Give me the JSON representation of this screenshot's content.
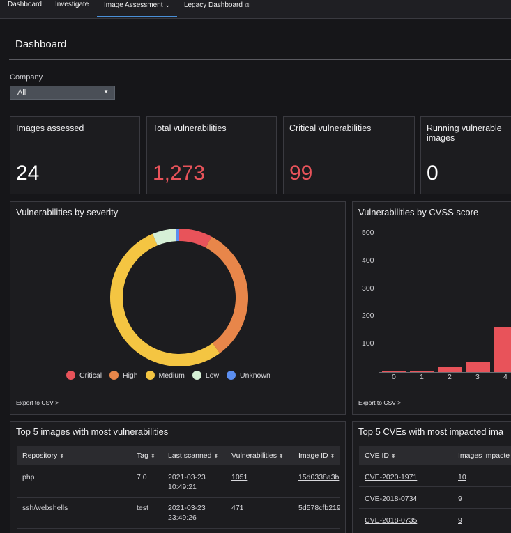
{
  "nav": {
    "tabs": [
      "Dashboard",
      "Investigate",
      "Image Assessment",
      "Legacy Dashboard"
    ],
    "active": "Image Assessment"
  },
  "page": {
    "title": "Dashboard"
  },
  "filter": {
    "label": "Company",
    "selected": "All"
  },
  "stats": [
    {
      "label": "Images assessed",
      "value": "24"
    },
    {
      "label": "Total vulnerabilities",
      "value": "1,273"
    },
    {
      "label": "Critical vulnerabilities",
      "value": "99"
    },
    {
      "label": "Running vulnerable images",
      "value": "0"
    }
  ],
  "severity_panel": {
    "title": "Vulnerabilities by severity",
    "export": "Export to CSV >",
    "legend": [
      "Critical",
      "High",
      "Medium",
      "Low",
      "Unknown"
    ]
  },
  "cvss_panel": {
    "title": "Vulnerabilities by CVSS score",
    "export": "Export to CSV >"
  },
  "chart_data": [
    {
      "type": "pie",
      "title": "Vulnerabilities by severity",
      "categories": [
        "Critical",
        "High",
        "Medium",
        "Low",
        "Unknown"
      ],
      "values": [
        99,
        410,
        684,
        70,
        10
      ],
      "colors": [
        "#e8535a",
        "#e8864a",
        "#f4c542",
        "#d6f0d6",
        "#5b8ef0"
      ],
      "donut": true
    },
    {
      "type": "bar",
      "title": "Vulnerabilities by CVSS score",
      "categories": [
        "0",
        "1",
        "2",
        "3",
        "4"
      ],
      "values": [
        4,
        3,
        18,
        38,
        160
      ],
      "yticks": [
        "100",
        "200",
        "300",
        "400",
        "500"
      ],
      "ylim": [
        0,
        500
      ],
      "color": "#e8535a"
    }
  ],
  "images_table": {
    "title": "Top 5 images with most vulnerabilities",
    "columns": [
      "Repository",
      "Tag",
      "Last scanned",
      "Vulnerabilities",
      "Image ID"
    ],
    "rows": [
      {
        "repository": "php",
        "tag": "7.0",
        "scanned_date": "2021-03-23",
        "scanned_time": "10:49:21",
        "vulns": "1051",
        "image_id": "15d0338a3b"
      },
      {
        "repository": "ssh/webshells",
        "tag": "test",
        "scanned_date": "2021-03-23",
        "scanned_time": "23:49:26",
        "vulns": "471",
        "image_id": "5d578cfb219"
      }
    ]
  },
  "cves_table": {
    "title": "Top 5 CVEs with most impacted ima",
    "columns": [
      "CVE ID",
      "Images impacte"
    ],
    "rows": [
      {
        "cve": "CVE-2020-1971",
        "images": "10"
      },
      {
        "cve": "CVE-2018-0734",
        "images": "9"
      },
      {
        "cve": "CVE-2018-0735",
        "images": "9"
      }
    ]
  }
}
